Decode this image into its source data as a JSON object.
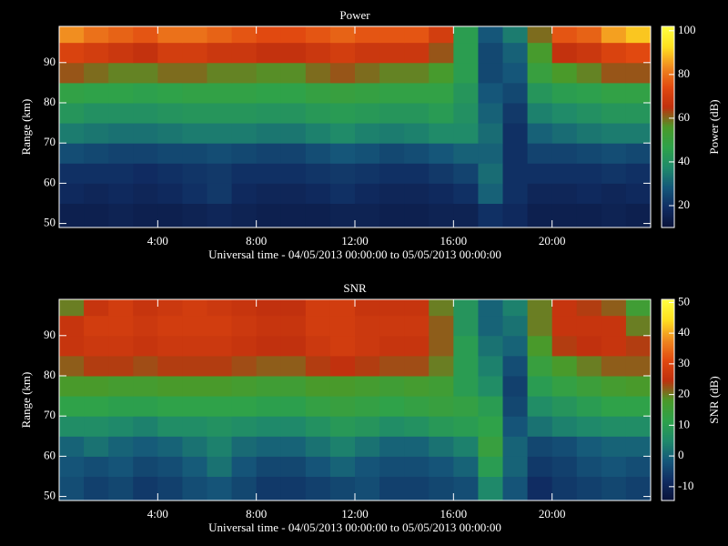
{
  "chart_data": [
    {
      "type": "heatmap",
      "title": "Power",
      "xlabel": "Universal time - 04/05/2013 00:00:00 to 05/05/2013 00:00:00",
      "ylabel": "Range (km)",
      "colorbar_label": "Power (dB)",
      "xlim": [
        0,
        24
      ],
      "ylim": [
        49,
        99
      ],
      "clim": [
        10,
        102
      ],
      "xticks": [
        {
          "value": 4,
          "label": "4:00"
        },
        {
          "value": 8,
          "label": "8:00"
        },
        {
          "value": 12,
          "label": "12:00"
        },
        {
          "value": 16,
          "label": "16:00"
        },
        {
          "value": 20,
          "label": "20:00"
        }
      ],
      "yticks": [
        50,
        60,
        70,
        80,
        90
      ],
      "cticks": [
        20,
        40,
        60,
        80,
        100
      ],
      "xbins": [
        0,
        1,
        2,
        3,
        4,
        5,
        6,
        7,
        8,
        9,
        10,
        11,
        12,
        13,
        14,
        15,
        16,
        17,
        18,
        19,
        20,
        21,
        22,
        23,
        24
      ],
      "ybins": [
        49,
        55,
        60,
        65,
        70,
        75,
        80,
        85,
        90,
        95,
        99
      ],
      "colormap": [
        "#0a1238",
        "#102c62",
        "#15587a",
        "#1f8a6a",
        "#2ea24a",
        "#4a9a2a",
        "#c0300e",
        "#e24a10",
        "#f08a20",
        "#ffe020",
        "#ffff40"
      ],
      "values": [
        [
          15,
          15,
          16,
          15,
          15,
          16,
          17,
          16,
          15,
          15,
          15,
          16,
          16,
          15,
          15,
          16,
          16,
          20,
          18,
          15,
          15,
          15,
          16,
          15
        ],
        [
          18,
          17,
          18,
          17,
          18,
          20,
          22,
          18,
          17,
          17,
          18,
          20,
          18,
          17,
          17,
          18,
          20,
          30,
          20,
          17,
          17,
          18,
          17,
          18
        ],
        [
          20,
          20,
          20,
          19,
          20,
          21,
          22,
          20,
          20,
          20,
          21,
          22,
          21,
          20,
          20,
          22,
          24,
          32,
          20,
          20,
          20,
          20,
          21,
          20
        ],
        [
          26,
          25,
          24,
          24,
          25,
          25,
          26,
          25,
          24,
          24,
          26,
          28,
          27,
          25,
          26,
          28,
          30,
          30,
          20,
          24,
          24,
          25,
          26,
          25
        ],
        [
          35,
          34,
          33,
          33,
          34,
          35,
          35,
          35,
          34,
          34,
          36,
          38,
          36,
          35,
          36,
          38,
          38,
          32,
          20,
          30,
          32,
          34,
          35,
          35
        ],
        [
          42,
          40,
          40,
          40,
          41,
          42,
          42,
          42,
          41,
          41,
          43,
          44,
          43,
          42,
          42,
          44,
          40,
          30,
          22,
          36,
          38,
          40,
          42,
          42
        ],
        [
          48,
          47,
          47,
          46,
          47,
          48,
          48,
          48,
          47,
          47,
          49,
          50,
          49,
          48,
          48,
          48,
          42,
          28,
          25,
          42,
          45,
          46,
          48,
          48
        ],
        [
          62,
          60,
          58,
          58,
          60,
          60,
          58,
          58,
          57,
          57,
          60,
          62,
          60,
          58,
          58,
          55,
          45,
          25,
          28,
          50,
          56,
          58,
          62,
          62
        ],
        [
          72,
          70,
          68,
          66,
          70,
          70,
          68,
          68,
          66,
          66,
          68,
          70,
          68,
          68,
          68,
          62,
          45,
          25,
          30,
          55,
          66,
          68,
          72,
          74
        ],
        [
          84,
          80,
          78,
          76,
          80,
          80,
          78,
          76,
          74,
          74,
          76,
          78,
          76,
          76,
          76,
          70,
          45,
          28,
          35,
          60,
          76,
          78,
          86,
          90
        ]
      ]
    },
    {
      "type": "heatmap",
      "title": "SNR",
      "xlabel": "Universal time - 04/05/2013 00:00:00 to 05/05/2013 00:00:00",
      "ylabel": "Range (km)",
      "colorbar_label": "SNR (dB)",
      "xlim": [
        0,
        24
      ],
      "ylim": [
        49,
        99
      ],
      "clim": [
        -14.5,
        51
      ],
      "xticks": [
        {
          "value": 4,
          "label": "4:00"
        },
        {
          "value": 8,
          "label": "8:00"
        },
        {
          "value": 12,
          "label": "12:00"
        },
        {
          "value": 16,
          "label": "16:00"
        },
        {
          "value": 20,
          "label": "20:00"
        }
      ],
      "yticks": [
        50,
        60,
        70,
        80,
        90
      ],
      "cticks": [
        -10,
        0,
        10,
        20,
        30,
        40,
        50
      ],
      "xbins": [
        0,
        1,
        2,
        3,
        4,
        5,
        6,
        7,
        8,
        9,
        10,
        11,
        12,
        13,
        14,
        15,
        16,
        17,
        18,
        19,
        20,
        21,
        22,
        23,
        24
      ],
      "ybins": [
        49,
        55,
        60,
        65,
        70,
        75,
        80,
        85,
        90,
        95,
        99
      ],
      "colormap": [
        "#0a1238",
        "#102c62",
        "#15587a",
        "#1f8a6a",
        "#2ea24a",
        "#4a9a2a",
        "#c0300e",
        "#e24a10",
        "#f08a20",
        "#ffe020",
        "#ffff40"
      ],
      "values": [
        [
          -3,
          -5,
          -4,
          -6,
          -5,
          -3,
          -2,
          -4,
          -6,
          -6,
          -5,
          -4,
          -3,
          -5,
          -5,
          -4,
          -3,
          5,
          -2,
          -8,
          -6,
          -5,
          -4,
          -5
        ],
        [
          -2,
          -3,
          -2,
          -4,
          -3,
          -1,
          2,
          -2,
          -4,
          -4,
          -2,
          0,
          -2,
          -3,
          -3,
          -2,
          0,
          10,
          0,
          -6,
          -5,
          -3,
          -2,
          -3
        ],
        [
          0,
          2,
          0,
          -1,
          0,
          2,
          4,
          1,
          0,
          0,
          2,
          4,
          2,
          0,
          0,
          2,
          4,
          14,
          0,
          -4,
          -3,
          -1,
          0,
          0
        ],
        [
          6,
          6,
          5,
          4,
          6,
          6,
          7,
          6,
          5,
          5,
          7,
          9,
          8,
          6,
          7,
          9,
          10,
          12,
          -2,
          2,
          4,
          5,
          6,
          6
        ],
        [
          12,
          12,
          11,
          11,
          12,
          12,
          12,
          12,
          11,
          11,
          13,
          14,
          13,
          12,
          13,
          14,
          13,
          10,
          -4,
          6,
          8,
          10,
          12,
          12
        ],
        [
          18,
          18,
          17,
          17,
          18,
          18,
          18,
          17,
          16,
          16,
          18,
          18,
          17,
          16,
          17,
          16,
          10,
          6,
          -5,
          10,
          13,
          15,
          17,
          18
        ],
        [
          22,
          24,
          24,
          23,
          24,
          24,
          24,
          23,
          22,
          22,
          24,
          25,
          24,
          23,
          23,
          20,
          10,
          4,
          -3,
          14,
          18,
          20,
          22,
          22
        ],
        [
          26,
          27,
          27,
          26,
          27,
          27,
          27,
          26,
          25,
          25,
          27,
          28,
          27,
          26,
          26,
          22,
          10,
          2,
          0,
          18,
          24,
          25,
          26,
          24
        ],
        [
          26,
          28,
          28,
          27,
          28,
          28,
          28,
          27,
          26,
          26,
          28,
          28,
          27,
          27,
          27,
          22,
          8,
          0,
          2,
          20,
          26,
          26,
          26,
          20
        ],
        [
          20,
          26,
          28,
          26,
          27,
          28,
          27,
          26,
          25,
          25,
          28,
          28,
          26,
          26,
          26,
          20,
          8,
          0,
          4,
          20,
          26,
          24,
          22,
          16
        ]
      ]
    }
  ]
}
